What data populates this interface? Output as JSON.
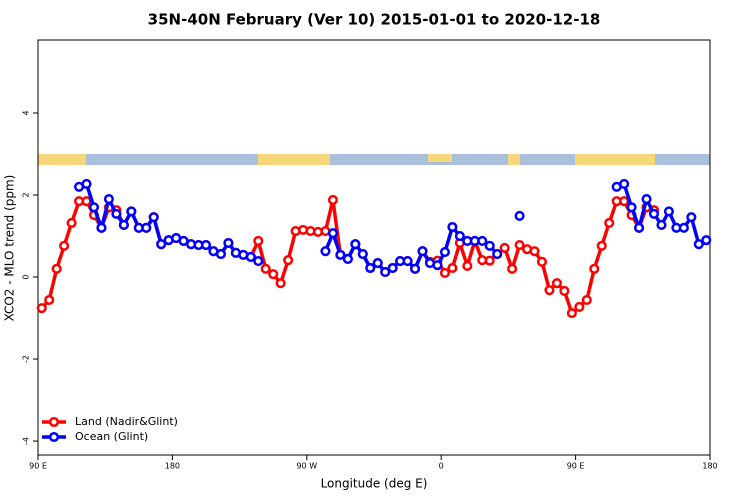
{
  "chart_data": {
    "type": "line",
    "title": "35N-40N February (Ver 10)   2015-01-01 to 2020-12-18",
    "x_label": "Longitude (deg E)",
    "y_label": "XCO2 - MLO trend (ppm)",
    "x": [
      92.5,
      97.5,
      102.5,
      107.5,
      112.5,
      117.5,
      122.5,
      127.5,
      132.5,
      137.5,
      142.5,
      147.5,
      152.5,
      157.5,
      162.5,
      167.5,
      172.5,
      177.5,
      182.5,
      187.5,
      192.5,
      197.5,
      202.5,
      207.5,
      212.5,
      217.5,
      222.5,
      227.5,
      232.5,
      237.5,
      242.5,
      247.5,
      252.5,
      257.5,
      262.5,
      267.5,
      272.5,
      277.5,
      282.5,
      287.5,
      292.5,
      297.5,
      302.5,
      307.5,
      312.5,
      317.5,
      322.5,
      327.5,
      332.5,
      337.5,
      342.5,
      347.5,
      352.5,
      357.5,
      362.5,
      367.5,
      372.5,
      377.5,
      382.5,
      387.5,
      392.5,
      397.5,
      402.5,
      407.5,
      412.5,
      417.5,
      422.5,
      427.5,
      432.5,
      437.5,
      442.5,
      447.5,
      452.5,
      457.5,
      462.5,
      467.5,
      472.5,
      477.5,
      482.5,
      487.5,
      492.5,
      497.5,
      502.5,
      507.5,
      512.5,
      517.5,
      522.5,
      527.5,
      532.5,
      537.5
    ],
    "series": [
      {
        "name": "Land (Nadir&Glint)",
        "color": "#ff0000",
        "values": [
          -0.76,
          -0.56,
          0.2,
          0.76,
          1.32,
          1.85,
          1.85,
          1.51,
          1.2,
          1.7,
          1.63,
          1.27,
          1.6,
          1.2,
          1.2,
          1.46,
          0.8,
          0.9,
          0.95,
          0.88,
          0.8,
          0.78,
          0.78,
          0.63,
          0.56,
          0.83,
          0.59,
          0.54,
          0.49,
          0.88,
          0.2,
          0.07,
          -0.15,
          0.41,
          1.12,
          1.15,
          1.12,
          1.1,
          1.12,
          1.88,
          0.54,
          0.44,
          0.8,
          0.56,
          0.22,
          0.34,
          0.12,
          0.22,
          0.39,
          0.39,
          0.2,
          0.63,
          0.37,
          0.4,
          0.1,
          0.22,
          0.83,
          0.27,
          0.88,
          0.41,
          0.4,
          0.56,
          0.71,
          0.2,
          0.78,
          0.68,
          0.63,
          0.37,
          -0.32,
          -0.15,
          -0.34,
          -0.88,
          -0.73,
          -0.56,
          0.2,
          0.76,
          1.32,
          1.85,
          1.85,
          1.51,
          1.2,
          1.7,
          1.63,
          null,
          null,
          null,
          null,
          null,
          null,
          null
        ]
      },
      {
        "name": "Ocean (Glint)",
        "color": "#0000ff",
        "values": [
          null,
          null,
          null,
          null,
          null,
          2.2,
          2.27,
          1.7,
          1.2,
          1.9,
          1.54,
          1.27,
          1.6,
          1.2,
          1.2,
          1.46,
          0.8,
          0.9,
          0.95,
          0.88,
          0.8,
          0.78,
          0.78,
          0.63,
          0.56,
          0.83,
          0.59,
          0.54,
          0.49,
          0.39,
          null,
          null,
          null,
          null,
          null,
          null,
          null,
          null,
          0.63,
          1.07,
          0.54,
          0.44,
          0.8,
          0.56,
          0.22,
          0.34,
          0.12,
          0.22,
          0.39,
          0.39,
          0.2,
          0.63,
          0.34,
          0.29,
          0.61,
          1.22,
          1.0,
          0.88,
          0.88,
          0.88,
          0.76,
          0.56,
          null,
          null,
          1.49,
          null,
          null,
          null,
          null,
          null,
          null,
          null,
          null,
          null,
          null,
          null,
          null,
          2.2,
          2.27,
          1.7,
          1.2,
          1.9,
          1.54,
          1.27,
          1.6,
          1.2,
          1.2,
          1.46,
          0.8,
          0.9
        ]
      }
    ],
    "xlim": [
      90,
      540
    ],
    "xticks": [
      {
        "value": 90,
        "label": "90 E"
      },
      180,
      {
        "value": 270,
        "label": "90 W"
      },
      {
        "value": 360,
        "label": "0"
      },
      {
        "value": 450,
        "label": "90 E"
      },
      {
        "value": 540,
        "label": "180"
      }
    ],
    "ylim": [
      -4.34,
      5.78
    ],
    "yticks": [
      -4,
      -2,
      0,
      2,
      4
    ],
    "legend": "bottom-left"
  }
}
